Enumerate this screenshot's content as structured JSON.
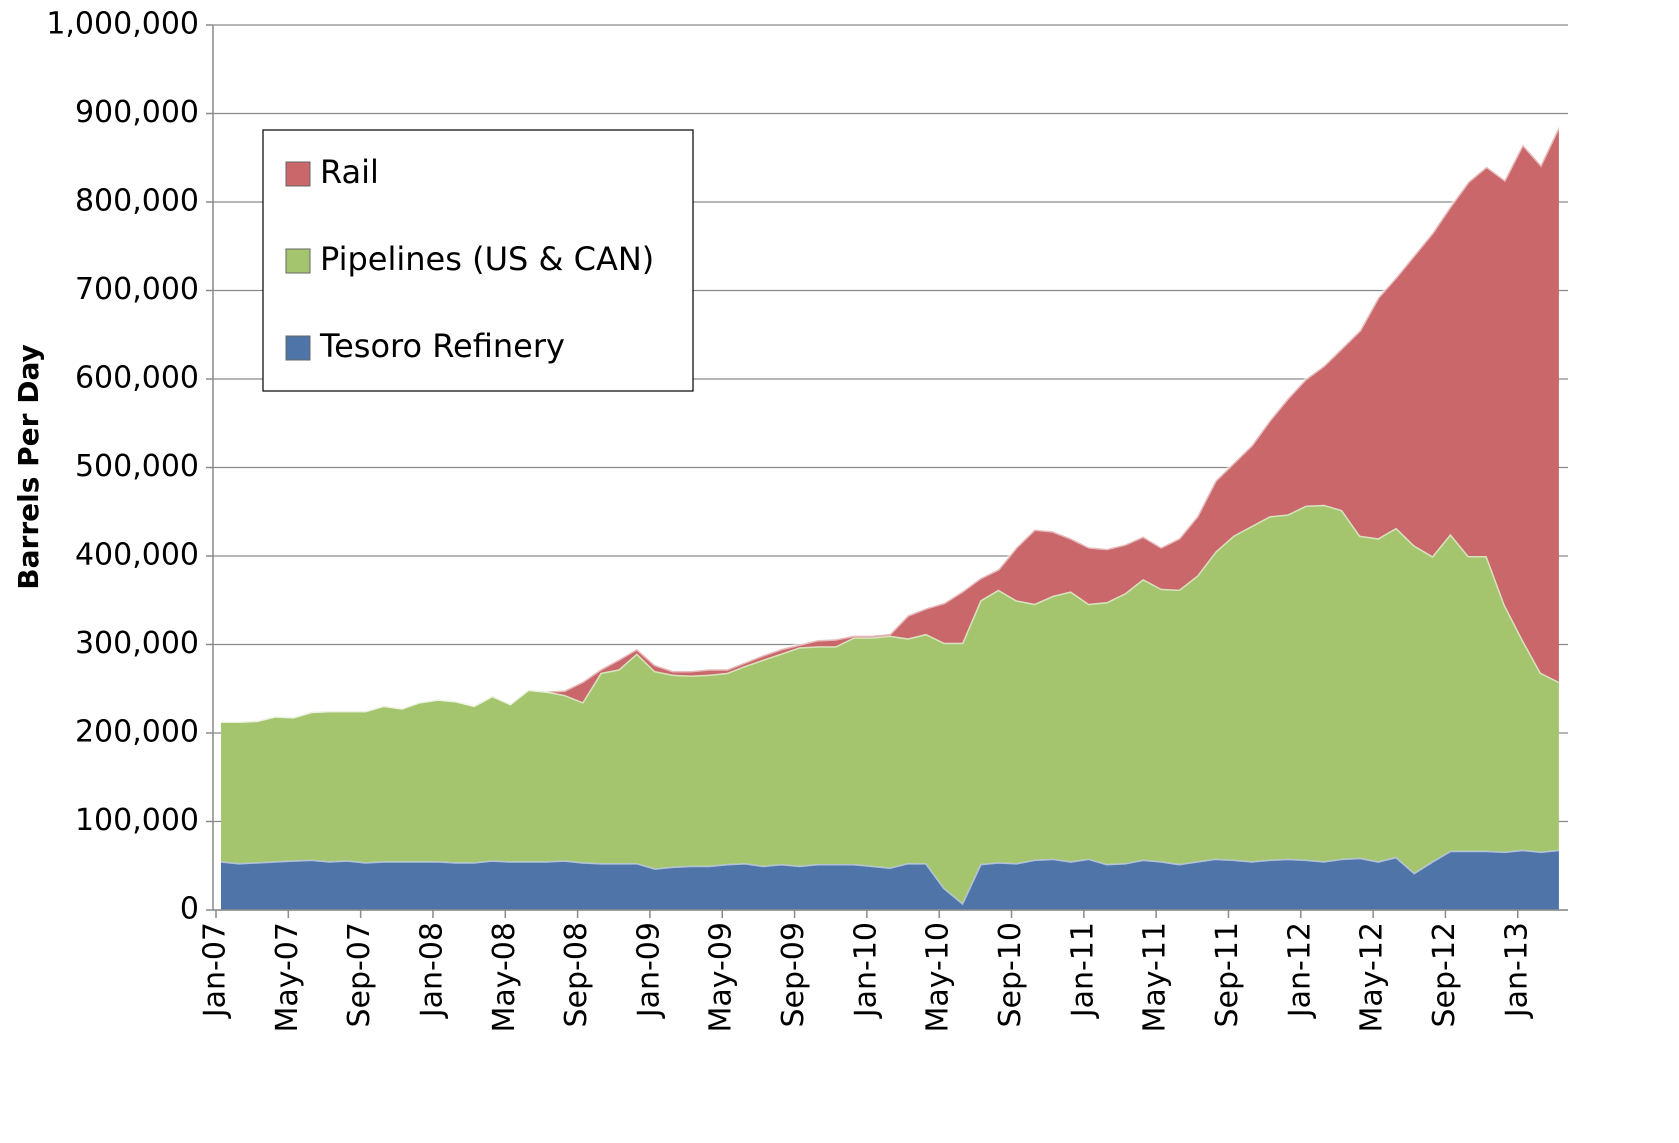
{
  "chart_data": {
    "type": "stacked_area",
    "y_label": "Barrels Per Day",
    "categories": [
      "Jan-07",
      null,
      null,
      null,
      "May-07",
      null,
      null,
      null,
      "Sep-07",
      null,
      null,
      null,
      "Jan-08",
      null,
      null,
      null,
      "May-08",
      null,
      null,
      null,
      "Sep-08",
      null,
      null,
      null,
      "Jan-09",
      null,
      null,
      null,
      "May-09",
      null,
      null,
      null,
      "Sep-09",
      null,
      null,
      null,
      "Jan-10",
      null,
      null,
      null,
      "May-10",
      null,
      null,
      null,
      "Sep-10",
      null,
      null,
      null,
      "Jan-11",
      null,
      null,
      null,
      "May-11",
      null,
      null,
      null,
      "Sep-11",
      null,
      null,
      null,
      "Jan-12",
      null,
      null,
      null,
      "May-12",
      null,
      null,
      null,
      "Sep-12",
      null,
      null,
      null,
      "Jan-13",
      null,
      null
    ],
    "series": [
      {
        "name": "Tesoro Refinery",
        "color": "#4f74a8",
        "values": [
          55000,
          53000,
          54000,
          55000,
          56000,
          57000,
          55000,
          56000,
          54000,
          55000,
          55000,
          55000,
          55000,
          54000,
          54000,
          56000,
          55000,
          55000,
          55000,
          56000,
          54000,
          53000,
          53000,
          53000,
          47000,
          49000,
          50000,
          50000,
          52000,
          53000,
          50000,
          52000,
          50000,
          52000,
          52000,
          52000,
          50000,
          48000,
          53000,
          53000,
          25000,
          8000,
          52000,
          54000,
          53000,
          57000,
          58000,
          55000,
          58000,
          52000,
          53000,
          57000,
          55000,
          52000,
          55000,
          58000,
          57000,
          55000,
          57000,
          58000,
          57000,
          55000,
          58000,
          59000,
          55000,
          60000,
          42000,
          55000,
          67000,
          67000,
          67000,
          66000,
          68000,
          66000,
          68000
        ]
      },
      {
        "name": "Pipelines (US & CAN)",
        "color": "#a5c46e",
        "values": [
          158000,
          160000,
          160000,
          164000,
          162000,
          167000,
          170000,
          169000,
          171000,
          176000,
          173000,
          180000,
          183000,
          182000,
          177000,
          186000,
          178000,
          194000,
          192000,
          187000,
          181000,
          215000,
          219000,
          237000,
          223000,
          217000,
          215000,
          216000,
          216000,
          223000,
          233000,
          238000,
          247000,
          246000,
          246000,
          256000,
          258000,
          262000,
          254000,
          259000,
          277000,
          294000,
          298000,
          308000,
          297000,
          289000,
          297000,
          305000,
          288000,
          296000,
          305000,
          317000,
          308000,
          310000,
          323000,
          347000,
          366000,
          379000,
          388000,
          389000,
          400000,
          403000,
          394000,
          364000,
          365000,
          372000,
          370000,
          345000,
          358000,
          333000,
          333000,
          279000,
          237000,
          202000,
          190000
        ]
      },
      {
        "name": "Rail",
        "color": "#c9676a",
        "values": [
          0,
          0,
          0,
          0,
          0,
          0,
          0,
          0,
          0,
          0,
          0,
          0,
          0,
          0,
          0,
          0,
          0,
          0,
          0,
          5000,
          23000,
          4000,
          11000,
          5000,
          7000,
          4000,
          5000,
          6000,
          4000,
          4000,
          5000,
          5000,
          3000,
          7000,
          8000,
          2000,
          2000,
          2000,
          26000,
          29000,
          45000,
          58000,
          25000,
          23000,
          60000,
          84000,
          73000,
          60000,
          64000,
          60000,
          55000,
          48000,
          47000,
          58000,
          67000,
          80000,
          82000,
          91000,
          108000,
          131000,
          143000,
          157000,
          183000,
          232000,
          272000,
          283000,
          328000,
          365000,
          370000,
          423000,
          440000,
          480000,
          560000,
          574000,
          627000
        ]
      }
    ],
    "ylim": [
      0,
      1000000
    ],
    "yticks": [
      0,
      {
        "value": 100000,
        "label": "100,000"
      },
      {
        "value": 200000,
        "label": "200,000"
      },
      {
        "value": 300000,
        "label": "300,000"
      },
      {
        "value": 400000,
        "label": "400,000"
      },
      {
        "value": 500000,
        "label": "500,000"
      },
      {
        "value": 600000,
        "label": "600,000"
      },
      {
        "value": 700000,
        "label": "700,000"
      },
      {
        "value": 800000,
        "label": "800,000"
      },
      {
        "value": 900000,
        "label": "900,000"
      },
      {
        "value": 1000000,
        "label": "1,000,000"
      }
    ],
    "grid": true,
    "legend": "upper left"
  }
}
